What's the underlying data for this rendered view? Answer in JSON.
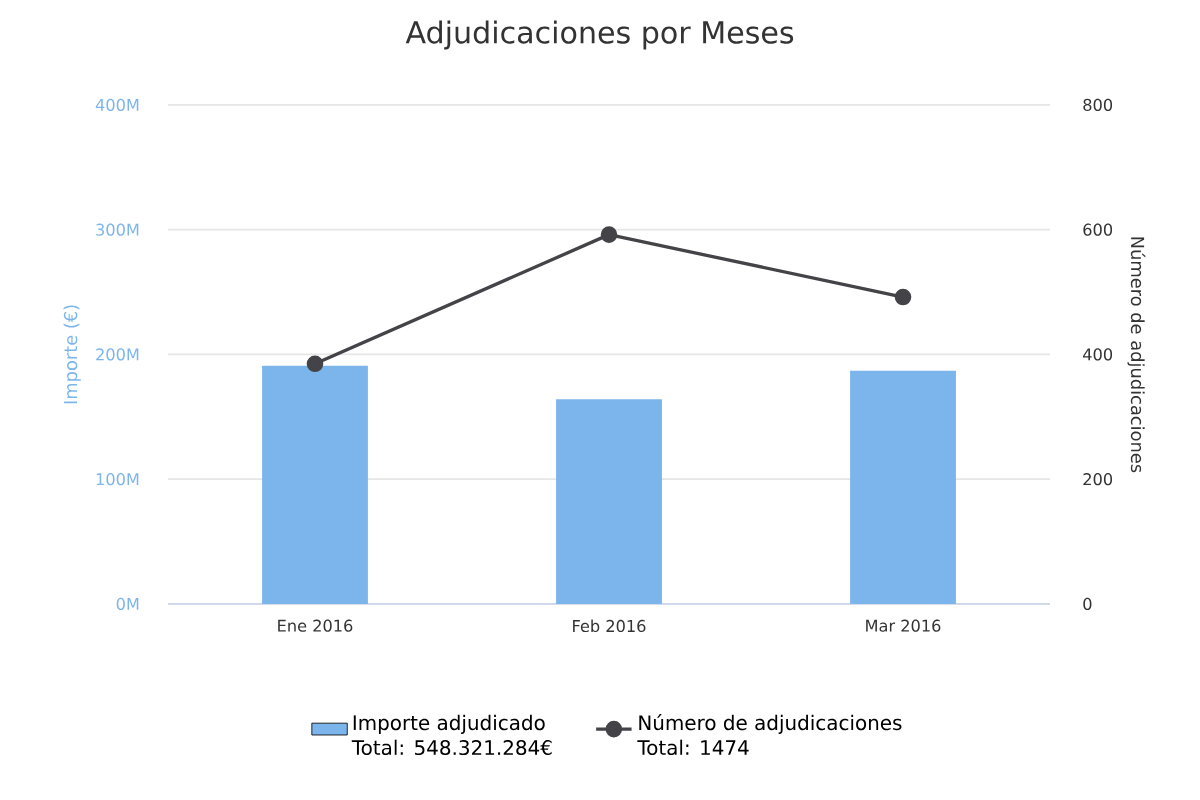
{
  "chart_data": {
    "type": "bar",
    "title": "Adjudicaciones por Meses",
    "ylabel": "Importe (€)",
    "y2label": "Número de adjudicaciones",
    "categories": [
      "Ene 2016",
      "Feb 2016",
      "Mar 2016"
    ],
    "series": [
      {
        "name": "Importe adjudicado",
        "color": "#7cb5ec",
        "values": [
          191,
          164,
          187
        ]
      },
      {
        "name": "Número de adjudicaciones",
        "type": "line",
        "axis": "y2",
        "color": "#434348",
        "values": [
          385,
          592,
          492
        ]
      }
    ],
    "ylim": [
      0,
      400
    ],
    "yticks": [
      {
        "value": 0,
        "label": "0M"
      },
      {
        "value": 100,
        "label": "100M"
      },
      {
        "value": 200,
        "label": "200M"
      },
      {
        "value": 300,
        "label": "300M"
      },
      {
        "value": 400,
        "label": "400M"
      }
    ],
    "y2lim": [
      0,
      800
    ],
    "y2ticks": [
      0,
      200,
      400,
      600,
      800
    ],
    "grid": "y",
    "legend": "bottom",
    "marker": "circle",
    "annotations": [
      "Total: 548.321.284€",
      "Total: 1474"
    ]
  }
}
